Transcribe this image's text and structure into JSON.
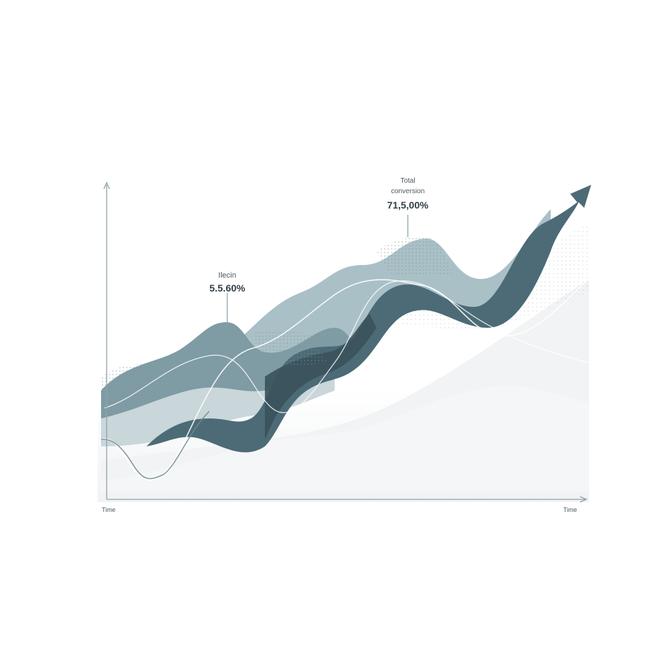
{
  "colors": {
    "dark": "#456570",
    "darker": "#3a525c",
    "mid": "#7f9ba4",
    "light": "#a9c0c7",
    "pale": "#c9d6da",
    "line": "#ffffff",
    "axis": "#8fa3a9",
    "bg_band": "#eef1f2"
  },
  "annotations": {
    "left": {
      "label": "Ilecin",
      "value": "5.5.60%"
    },
    "right": {
      "label_1": "Total",
      "label_2": "conversion",
      "value": "71,5,00%"
    }
  },
  "axes": {
    "x_label_left": "Time",
    "x_label_right": "Time"
  },
  "chart_data": {
    "type": "area",
    "title": "",
    "xlabel": "Time",
    "ylabel": "",
    "grid": false,
    "legend": "none",
    "annotations": [
      {
        "label": "Ilecin",
        "value": "5.5.60%"
      },
      {
        "label": "Total conversion",
        "value": "71,5,00%"
      }
    ],
    "trend": "upward"
  }
}
